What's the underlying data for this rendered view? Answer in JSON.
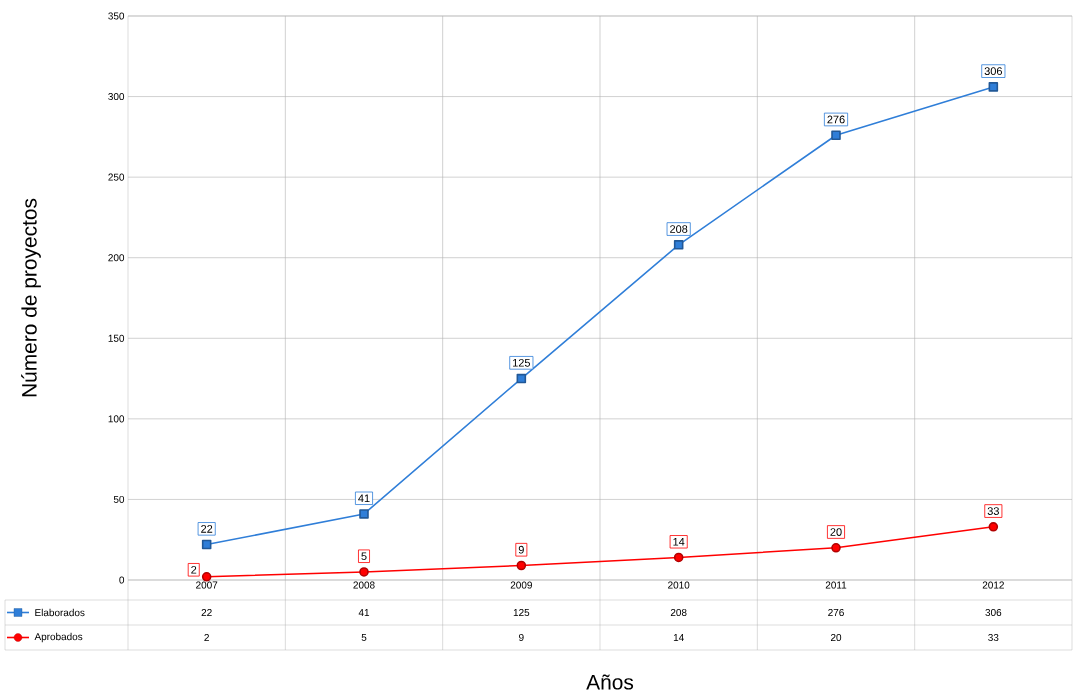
{
  "chart_data": {
    "type": "line",
    "xlabel": "Años",
    "ylabel": "Número de proyectos",
    "categories": [
      "2007",
      "2008",
      "2009",
      "2010",
      "2011",
      "2012"
    ],
    "series": [
      {
        "name": "Elaborados",
        "color": "#2f7ed8",
        "marker": "square",
        "values": [
          22,
          41,
          125,
          208,
          276,
          306
        ],
        "value_labels": [
          "22",
          "41",
          "125",
          "208",
          "276",
          "306"
        ]
      },
      {
        "name": "Aprobados",
        "color": "#ff0000",
        "marker": "circle",
        "values": [
          2,
          5,
          9,
          14,
          20,
          33
        ],
        "value_labels": [
          "2",
          "5",
          "9",
          "14",
          "20",
          "33"
        ]
      }
    ],
    "ylim": [
      0,
      350
    ],
    "yticks": [
      0,
      50,
      100,
      150,
      200,
      250,
      300,
      350
    ],
    "grid": true,
    "legend": "bottom left",
    "line_style": "solid",
    "annotations": [
      "22",
      "41",
      "125",
      "208",
      "276",
      "306",
      "2",
      "5",
      "9",
      "14",
      "20",
      "33"
    ]
  }
}
